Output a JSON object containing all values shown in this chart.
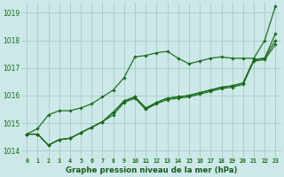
{
  "title": "Graphe pression niveau de la mer (hPa)",
  "bg_color": "#cce8e8",
  "grid_color": "#aad0c8",
  "line_color": "#1a6b1a",
  "marker_color": "#1a6b1a",
  "xlabel_color": "#1a5c1a",
  "x_ticks": [
    0,
    1,
    2,
    3,
    4,
    5,
    6,
    7,
    8,
    9,
    10,
    11,
    12,
    13,
    14,
    15,
    16,
    17,
    18,
    19,
    20,
    21,
    22,
    23
  ],
  "ylim": [
    1013.75,
    1019.35
  ],
  "yticks": [
    1014,
    1015,
    1016,
    1017,
    1018,
    1019
  ],
  "s1": [
    1014.6,
    1014.8,
    1015.3,
    1015.45,
    1015.45,
    1015.55,
    1015.7,
    1015.95,
    1016.2,
    1016.65,
    1017.4,
    1017.45,
    1017.55,
    1017.6,
    1017.35,
    1017.15,
    1017.25,
    1017.35,
    1017.4,
    1017.35,
    1017.35,
    1017.35,
    1018.0,
    1019.25
  ],
  "s2": [
    1014.6,
    1014.6,
    1014.2,
    1014.4,
    1014.45,
    1014.65,
    1014.85,
    1015.05,
    1015.4,
    1015.8,
    1015.95,
    1015.5,
    1015.75,
    1015.9,
    1015.95,
    1016.0,
    1016.1,
    1016.2,
    1016.3,
    1016.35,
    1016.45,
    1017.3,
    1017.35,
    1018.25
  ],
  "s3": [
    1014.6,
    1014.6,
    1014.2,
    1014.4,
    1014.45,
    1014.65,
    1014.85,
    1015.05,
    1015.4,
    1015.8,
    1015.95,
    1015.55,
    1015.75,
    1015.9,
    1015.95,
    1016.0,
    1016.1,
    1016.2,
    1016.3,
    1016.35,
    1016.45,
    1017.3,
    1017.35,
    1018.0
  ],
  "s4": [
    1014.6,
    1014.6,
    1014.2,
    1014.4,
    1014.45,
    1014.65,
    1014.85,
    1015.05,
    1015.3,
    1015.75,
    1015.9,
    1015.5,
    1015.7,
    1015.85,
    1015.9,
    1015.95,
    1016.05,
    1016.15,
    1016.25,
    1016.3,
    1016.4,
    1017.25,
    1017.3,
    1017.85
  ]
}
